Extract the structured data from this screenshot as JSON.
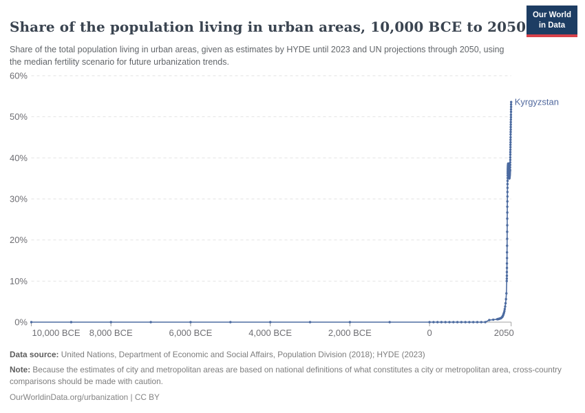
{
  "header": {
    "title": "Share of the population living in urban areas, 10,000 BCE to 2050",
    "subtitle": "Share of the total population living in urban areas, given as estimates by HYDE until 2023 and UN projections through 2050, using the median fertility scenario for future urbanization trends.",
    "logo": {
      "line1": "Our World",
      "line2": "in Data"
    }
  },
  "footer": {
    "data_source_label": "Data source:",
    "data_source_text": " United Nations, Department of Economic and Social Affairs, Population Division (2018); HYDE (2023)",
    "note_label": "Note:",
    "note_text": " Because the estimates of city and metropolitan areas are based on national definitions of what constitutes a city or metropolitan area, cross-country comparisons should be made with caution.",
    "url": "OurWorldinData.org/urbanization | CC BY"
  },
  "colors": {
    "line": "#4c6ba0",
    "entity_label": "#51699e",
    "grid": "#e2e2e2",
    "axis": "#a1a1a1",
    "axis_text": "#6e6e73",
    "logo_bg": "#1d3d63",
    "logo_red": "#d8414a"
  },
  "chart_data": {
    "type": "line",
    "title": "Share of the population living in urban areas, 10,000 BCE to 2050",
    "entity_label": "Kyrgyzstan",
    "unit": "%",
    "grid": true,
    "legend_position": "end-of-line label",
    "xlim": [
      -10000,
      2050
    ],
    "ylim": [
      0,
      60
    ],
    "y_ticks": [
      {
        "value": 0,
        "label": "0%"
      },
      {
        "value": 10,
        "label": "10%"
      },
      {
        "value": 20,
        "label": "20%"
      },
      {
        "value": 30,
        "label": "30%"
      },
      {
        "value": 40,
        "label": "40%"
      },
      {
        "value": 50,
        "label": "50%"
      },
      {
        "value": 60,
        "label": "60%"
      }
    ],
    "x_ticks": [
      {
        "value": -10000,
        "label": "10,000 BCE",
        "align": "start"
      },
      {
        "value": -8000,
        "label": "8,000 BCE",
        "align": "middle"
      },
      {
        "value": -6000,
        "label": "6,000 BCE",
        "align": "middle"
      },
      {
        "value": -4000,
        "label": "4,000 BCE",
        "align": "middle"
      },
      {
        "value": -2000,
        "label": "2,000 BCE",
        "align": "middle"
      },
      {
        "value": 0,
        "label": "0",
        "align": "middle"
      },
      {
        "value": 2050,
        "label": "2050",
        "align": "end"
      }
    ],
    "series": [
      {
        "name": "Kyrgyzstan",
        "color": "#4c6ba0",
        "points": [
          [
            -10000,
            0
          ],
          [
            -9000,
            0
          ],
          [
            -8000,
            0
          ],
          [
            -7000,
            0
          ],
          [
            -6000,
            0
          ],
          [
            -5000,
            0
          ],
          [
            -4000,
            0
          ],
          [
            -3000,
            0
          ],
          [
            -2000,
            0
          ],
          [
            -1000,
            0
          ],
          [
            0,
            0
          ],
          [
            100,
            0
          ],
          [
            200,
            0
          ],
          [
            300,
            0
          ],
          [
            400,
            0
          ],
          [
            500,
            0
          ],
          [
            600,
            0
          ],
          [
            700,
            0
          ],
          [
            800,
            0
          ],
          [
            900,
            0
          ],
          [
            1000,
            0
          ],
          [
            1100,
            0
          ],
          [
            1200,
            0
          ],
          [
            1300,
            0
          ],
          [
            1400,
            0
          ],
          [
            1500,
            0.5
          ],
          [
            1600,
            0.6
          ],
          [
            1700,
            0.7
          ],
          [
            1710,
            0.7
          ],
          [
            1720,
            0.75
          ],
          [
            1730,
            0.75
          ],
          [
            1740,
            0.8
          ],
          [
            1750,
            0.8
          ],
          [
            1760,
            0.85
          ],
          [
            1770,
            0.9
          ],
          [
            1780,
            0.9
          ],
          [
            1790,
            0.95
          ],
          [
            1800,
            1.0
          ],
          [
            1810,
            1.1
          ],
          [
            1820,
            1.2
          ],
          [
            1830,
            1.3
          ],
          [
            1840,
            1.5
          ],
          [
            1850,
            1.7
          ],
          [
            1860,
            2.0
          ],
          [
            1870,
            2.3
          ],
          [
            1880,
            2.7
          ],
          [
            1890,
            3.2
          ],
          [
            1900,
            3.8
          ],
          [
            1910,
            4.6
          ],
          [
            1920,
            5.6
          ],
          [
            1930,
            7.0
          ],
          [
            1940,
            10.0
          ],
          [
            1941,
            10.6
          ],
          [
            1942,
            11.3
          ],
          [
            1943,
            12.2
          ],
          [
            1944,
            13.2
          ],
          [
            1945,
            14.3
          ],
          [
            1946,
            15.6
          ],
          [
            1947,
            17.0
          ],
          [
            1948,
            18.6
          ],
          [
            1949,
            20.3
          ],
          [
            1950,
            22.0
          ],
          [
            1951,
            23.6
          ],
          [
            1952,
            25.2
          ],
          [
            1953,
            26.7
          ],
          [
            1954,
            28.1
          ],
          [
            1955,
            29.4
          ],
          [
            1956,
            30.6
          ],
          [
            1957,
            31.7
          ],
          [
            1958,
            32.7
          ],
          [
            1959,
            33.6
          ],
          [
            1960,
            34.4
          ],
          [
            1961,
            35.1
          ],
          [
            1962,
            35.7
          ],
          [
            1963,
            36.2
          ],
          [
            1964,
            36.6
          ],
          [
            1965,
            37.0
          ],
          [
            1966,
            37.3
          ],
          [
            1967,
            37.6
          ],
          [
            1968,
            37.8
          ],
          [
            1969,
            38.0
          ],
          [
            1970,
            38.1
          ],
          [
            1971,
            38.2
          ],
          [
            1972,
            38.3
          ],
          [
            1973,
            38.4
          ],
          [
            1974,
            38.4
          ],
          [
            1975,
            38.5
          ],
          [
            1976,
            38.5
          ],
          [
            1977,
            38.6
          ],
          [
            1978,
            38.6
          ],
          [
            1979,
            38.6
          ],
          [
            1980,
            38.6
          ],
          [
            1981,
            38.6
          ],
          [
            1982,
            38.5
          ],
          [
            1983,
            38.5
          ],
          [
            1984,
            38.4
          ],
          [
            1985,
            38.3
          ],
          [
            1986,
            38.2
          ],
          [
            1987,
            38.0
          ],
          [
            1988,
            37.8
          ],
          [
            1989,
            37.6
          ],
          [
            1990,
            37.4
          ],
          [
            1991,
            37.1
          ],
          [
            1992,
            36.8
          ],
          [
            1993,
            36.5
          ],
          [
            1994,
            36.2
          ],
          [
            1995,
            35.9
          ],
          [
            1996,
            35.7
          ],
          [
            1997,
            35.5
          ],
          [
            1998,
            35.4
          ],
          [
            1999,
            35.3
          ],
          [
            2000,
            35.2
          ],
          [
            2001,
            35.1
          ],
          [
            2002,
            35.1
          ],
          [
            2003,
            35.0
          ],
          [
            2004,
            35.0
          ],
          [
            2005,
            35.1
          ],
          [
            2006,
            35.1
          ],
          [
            2007,
            35.2
          ],
          [
            2008,
            35.2
          ],
          [
            2009,
            35.3
          ],
          [
            2010,
            35.4
          ],
          [
            2011,
            35.5
          ],
          [
            2012,
            35.6
          ],
          [
            2013,
            35.7
          ],
          [
            2014,
            35.9
          ],
          [
            2015,
            36.0
          ],
          [
            2016,
            36.2
          ],
          [
            2017,
            36.3
          ],
          [
            2018,
            36.5
          ],
          [
            2019,
            36.6
          ],
          [
            2020,
            36.8
          ],
          [
            2021,
            36.9
          ],
          [
            2022,
            37.0
          ],
          [
            2023,
            37.1
          ],
          [
            2024,
            37.7
          ],
          [
            2025,
            38.3
          ],
          [
            2026,
            38.9
          ],
          [
            2027,
            39.5
          ],
          [
            2028,
            40.1
          ],
          [
            2029,
            40.8
          ],
          [
            2030,
            41.4
          ],
          [
            2031,
            42.0
          ],
          [
            2032,
            42.6
          ],
          [
            2033,
            43.2
          ],
          [
            2034,
            43.8
          ],
          [
            2035,
            44.4
          ],
          [
            2036,
            45.0
          ],
          [
            2037,
            45.7
          ],
          [
            2038,
            46.3
          ],
          [
            2039,
            46.9
          ],
          [
            2040,
            47.5
          ],
          [
            2041,
            48.1
          ],
          [
            2042,
            48.7
          ],
          [
            2043,
            49.3
          ],
          [
            2044,
            49.9
          ],
          [
            2045,
            50.5
          ],
          [
            2046,
            51.2
          ],
          [
            2047,
            51.8
          ],
          [
            2048,
            52.4
          ],
          [
            2049,
            53.0
          ],
          [
            2050,
            53.6
          ]
        ]
      }
    ]
  }
}
